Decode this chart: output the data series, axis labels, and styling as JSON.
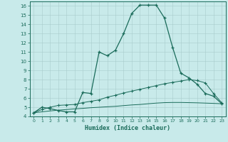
{
  "xlabel": "Humidex (Indice chaleur)",
  "bg_color": "#c8eaea",
  "line_color": "#1a6b5a",
  "grid_color": "#a8cccc",
  "xlim": [
    -0.5,
    23.5
  ],
  "ylim": [
    4,
    16.5
  ],
  "xtick_vals": [
    0,
    1,
    2,
    3,
    4,
    5,
    6,
    7,
    8,
    9,
    10,
    11,
    12,
    13,
    14,
    15,
    16,
    17,
    18,
    19,
    20,
    21,
    22,
    23
  ],
  "ytick_vals": [
    4,
    5,
    6,
    7,
    8,
    9,
    10,
    11,
    12,
    13,
    14,
    15,
    16
  ],
  "line1_x": [
    0,
    1,
    2,
    3,
    4,
    5,
    6,
    7,
    8,
    9,
    10,
    11,
    12,
    13,
    14,
    15,
    16,
    17,
    18,
    19,
    20,
    21,
    22,
    23
  ],
  "line1_y": [
    4.4,
    5.0,
    4.85,
    4.65,
    4.5,
    4.5,
    6.6,
    6.5,
    11.0,
    10.6,
    11.2,
    13.0,
    15.2,
    16.1,
    16.1,
    16.1,
    14.7,
    11.5,
    8.7,
    8.2,
    7.5,
    6.5,
    6.2,
    5.4
  ],
  "line2_x": [
    0,
    1,
    2,
    3,
    4,
    5,
    6,
    7,
    8,
    9,
    10,
    11,
    12,
    13,
    14,
    15,
    16,
    17,
    18,
    19,
    20,
    21,
    22,
    23
  ],
  "line2_y": [
    4.4,
    4.75,
    5.0,
    5.2,
    5.25,
    5.3,
    5.5,
    5.65,
    5.8,
    6.1,
    6.3,
    6.55,
    6.75,
    6.95,
    7.15,
    7.35,
    7.55,
    7.7,
    7.85,
    8.0,
    7.9,
    7.65,
    6.5,
    5.5
  ],
  "line3_x": [
    0,
    1,
    2,
    3,
    4,
    5,
    6,
    7,
    8,
    9,
    10,
    11,
    12,
    13,
    14,
    15,
    16,
    17,
    18,
    19,
    20,
    21,
    22,
    23
  ],
  "line3_y": [
    4.4,
    4.5,
    4.6,
    4.68,
    4.75,
    4.82,
    4.88,
    4.95,
    5.0,
    5.05,
    5.1,
    5.18,
    5.25,
    5.3,
    5.38,
    5.45,
    5.5,
    5.52,
    5.52,
    5.5,
    5.48,
    5.45,
    5.42,
    5.38
  ]
}
